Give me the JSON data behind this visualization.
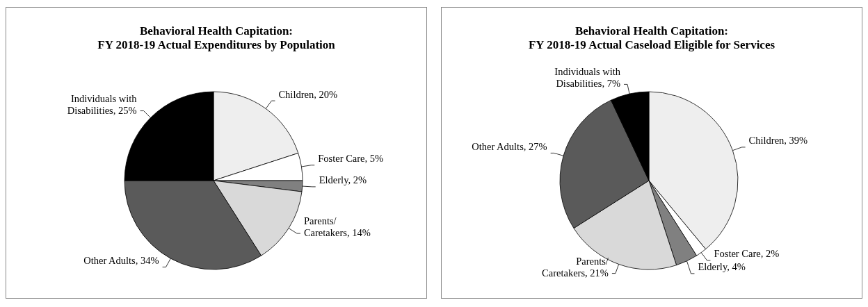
{
  "chart_data": [
    {
      "type": "pie",
      "title": "Behavioral Health Capitation:\nFY 2018-19 Actual Expenditures by Population",
      "categories": [
        "Children",
        "Foster Care",
        "Elderly",
        "Parents/ Caretakers",
        "Other Adults",
        "Individuals with Disabilities"
      ],
      "values": [
        20,
        5,
        2,
        14,
        34,
        25
      ],
      "value_labels": [
        "20%",
        "5%",
        "2%",
        "14%",
        "34%",
        "25%"
      ],
      "colors": [
        "#eeeeee",
        "#ffffff",
        "#808080",
        "#d9d9d9",
        "#5a5a5a",
        "#000000"
      ]
    },
    {
      "type": "pie",
      "title": "Behavioral Health Capitation:\nFY 2018-19 Actual Caseload Eligible for Services",
      "categories": [
        "Children",
        "Foster Care",
        "Elderly",
        "Parents/ Caretakers",
        "Other Adults",
        "Individuals with Disabilities"
      ],
      "values": [
        39,
        2,
        4,
        21,
        27,
        7
      ],
      "value_labels": [
        "39%",
        "2%",
        "4%",
        "21%",
        "27%",
        "7%"
      ],
      "colors": [
        "#eeeeee",
        "#ffffff",
        "#808080",
        "#d9d9d9",
        "#5a5a5a",
        "#000000"
      ]
    }
  ]
}
